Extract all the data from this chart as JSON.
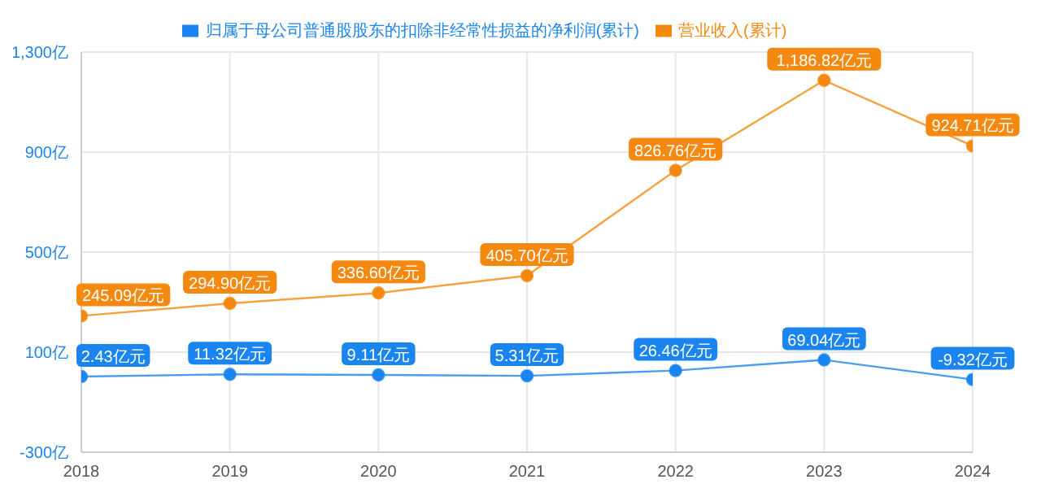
{
  "chart_data": {
    "type": "line",
    "categories": [
      "2018",
      "2019",
      "2020",
      "2021",
      "2022",
      "2023",
      "2024"
    ],
    "series": [
      {
        "name": "归属于母公司普通股股东的扣除非经常性损益的净利润(累计)",
        "color": "#1a85f0",
        "values": [
          2.43,
          11.32,
          9.11,
          5.31,
          26.46,
          69.04,
          -9.32
        ],
        "value_labels": [
          "2.43亿元",
          "11.32亿元",
          "9.11亿元",
          "5.31亿元",
          "26.46亿元",
          "69.04亿元",
          "-9.32亿元"
        ]
      },
      {
        "name": "营业收入(累计)",
        "color": "#f5880f",
        "values": [
          245.09,
          294.9,
          336.6,
          405.7,
          826.76,
          1186.82,
          924.71
        ],
        "value_labels": [
          "245.09亿元",
          "294.90亿元",
          "336.60亿元",
          "405.70亿元",
          "826.76亿元",
          "1,186.82亿元",
          "924.71亿元"
        ]
      }
    ],
    "ylim": [
      -300,
      1300
    ],
    "yticks": [
      {
        "value": -300,
        "label": "-300亿"
      },
      {
        "value": 100,
        "label": "100亿"
      },
      {
        "value": 500,
        "label": "500亿"
      },
      {
        "value": 900,
        "label": "900亿"
      },
      {
        "value": 1300,
        "label": "1,300亿"
      }
    ],
    "grid": true,
    "legend": "top",
    "marker": "circle",
    "line_style": "solid"
  }
}
